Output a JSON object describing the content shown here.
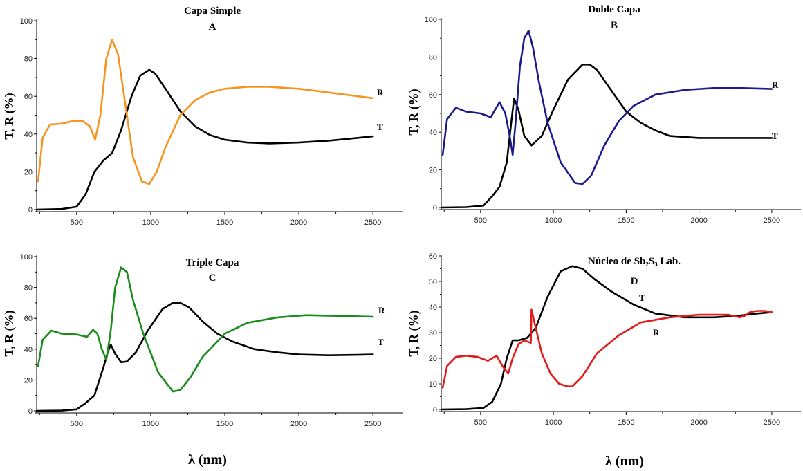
{
  "x_axis_label": "λ (nm)",
  "chart_data": [
    {
      "type": "line",
      "title": "Capa Simple",
      "subtitle": "A",
      "ylabel": "T, R (%)",
      "xlim": [
        230,
        2700
      ],
      "ylim": [
        0,
        100
      ],
      "xticks": [
        500,
        1000,
        1500,
        2000,
        2500
      ],
      "yticks": [
        0,
        20,
        40,
        60,
        80,
        100
      ],
      "series": [
        {
          "name": "T",
          "color": "#000000",
          "x": [
            230,
            400,
            500,
            560,
            620,
            680,
            740,
            800,
            870,
            930,
            990,
            1030,
            1100,
            1200,
            1300,
            1400,
            1500,
            1650,
            1800,
            2000,
            2200,
            2400,
            2500
          ],
          "y": [
            0,
            0.3,
            1.5,
            8,
            20,
            26,
            30,
            42,
            60,
            71,
            74,
            72,
            64,
            52,
            44,
            39.5,
            37,
            35.5,
            35,
            35.5,
            36.5,
            38,
            38.8
          ]
        },
        {
          "name": "R",
          "color": "#f7941d",
          "x": [
            240,
            270,
            320,
            400,
            480,
            540,
            590,
            625,
            660,
            700,
            740,
            780,
            830,
            880,
            940,
            990,
            1040,
            1100,
            1200,
            1300,
            1400,
            1500,
            1650,
            1800,
            2000,
            2200,
            2400,
            2500
          ],
          "y": [
            15,
            38,
            45,
            45.5,
            47,
            47,
            44,
            37,
            50,
            80,
            90,
            82,
            55,
            28,
            15,
            13.5,
            20,
            33,
            50,
            58,
            62,
            64,
            65,
            65,
            64,
            62,
            60,
            59
          ]
        }
      ],
      "annotations": [
        {
          "text": "R"
        },
        {
          "text": "T"
        }
      ]
    },
    {
      "type": "line",
      "title": "Doble Capa",
      "subtitle": "B",
      "ylabel": "T, R (%)",
      "xlim": [
        230,
        2700
      ],
      "ylim": [
        0,
        100
      ],
      "xticks": [
        500,
        1000,
        1500,
        2000,
        2500
      ],
      "yticks": [
        0,
        20,
        40,
        60,
        80,
        100
      ],
      "series": [
        {
          "name": "T",
          "color": "#000000",
          "x": [
            230,
            400,
            520,
            580,
            630,
            680,
            710,
            730,
            760,
            800,
            850,
            920,
            1000,
            1100,
            1200,
            1250,
            1300,
            1400,
            1500,
            1600,
            1700,
            1800,
            2000,
            2200,
            2400,
            2500
          ],
          "y": [
            0,
            0.2,
            1,
            6,
            11,
            24,
            45,
            58,
            52,
            38,
            33,
            38,
            52,
            68,
            76,
            76,
            73,
            62,
            51,
            45,
            41,
            38,
            37,
            37,
            37,
            37
          ]
        },
        {
          "name": "R",
          "color": "#1a1a8c",
          "x": [
            240,
            270,
            330,
            400,
            500,
            570,
            630,
            670,
            700,
            720,
            740,
            770,
            800,
            830,
            860,
            900,
            960,
            1050,
            1150,
            1200,
            1260,
            1350,
            1450,
            1550,
            1700,
            1900,
            2100,
            2300,
            2500
          ],
          "y": [
            28,
            47,
            53,
            51,
            50,
            48,
            56,
            50,
            38,
            28,
            45,
            75,
            90,
            94,
            85,
            67,
            45,
            24,
            13,
            12.5,
            17,
            33,
            46,
            54,
            60,
            62.5,
            63.5,
            63.5,
            63
          ]
        }
      ],
      "annotations": [
        {
          "text": "R"
        },
        {
          "text": "T"
        }
      ]
    },
    {
      "type": "line",
      "title": "Triple Capa",
      "subtitle": "C",
      "ylabel": "T, R (%)",
      "xlim": [
        230,
        2700
      ],
      "ylim": [
        0,
        100
      ],
      "xticks": [
        500,
        1000,
        1500,
        2000,
        2500
      ],
      "yticks": [
        0,
        20,
        40,
        60,
        80,
        100
      ],
      "series": [
        {
          "name": "T",
          "color": "#000000",
          "x": [
            230,
            400,
            500,
            560,
            620,
            680,
            710,
            730,
            760,
            800,
            840,
            900,
            980,
            1080,
            1150,
            1200,
            1260,
            1350,
            1450,
            1550,
            1700,
            1850,
            2000,
            2200,
            2400,
            2500
          ],
          "y": [
            0,
            0.2,
            1,
            5,
            10,
            28,
            38,
            43,
            37,
            31.5,
            32,
            38,
            52,
            66,
            70,
            70,
            67,
            58,
            50,
            45,
            40,
            38,
            36.5,
            36,
            36.3,
            36.5
          ]
        },
        {
          "name": "R",
          "color": "#1a8c1a",
          "x": [
            240,
            270,
            330,
            400,
            500,
            570,
            610,
            640,
            670,
            700,
            730,
            760,
            800,
            840,
            880,
            950,
            1050,
            1150,
            1200,
            1270,
            1350,
            1500,
            1650,
            1850,
            2050,
            2300,
            2500
          ],
          "y": [
            29,
            46,
            52,
            50,
            49.5,
            48,
            52.5,
            50,
            40,
            33,
            52,
            80,
            93,
            90,
            72,
            50,
            25,
            12.5,
            13.5,
            22,
            35,
            50,
            57,
            60.5,
            62,
            61.5,
            61
          ]
        }
      ],
      "annotations": [
        {
          "text": "R"
        },
        {
          "text": "T"
        }
      ]
    },
    {
      "type": "line",
      "title": "Núcleo de Sb₂S₃ Lab.",
      "subtitle": "D",
      "ylabel": "T, R (%)",
      "xlim": [
        230,
        2700
      ],
      "ylim": [
        0,
        60
      ],
      "xticks": [
        500,
        1000,
        1500,
        2000,
        2500
      ],
      "yticks": [
        0,
        10,
        20,
        30,
        40,
        50,
        60
      ],
      "series": [
        {
          "name": "T",
          "color": "#000000",
          "x": [
            230,
            400,
            520,
            580,
            640,
            680,
            720,
            760,
            820,
            880,
            960,
            1050,
            1130,
            1200,
            1280,
            1400,
            1550,
            1700,
            1900,
            2100,
            2250,
            2400,
            2500
          ],
          "y": [
            0,
            0.1,
            0.6,
            3,
            10,
            20,
            27,
            27,
            28,
            32,
            44,
            54,
            56,
            55,
            51,
            46,
            41,
            37.5,
            36,
            36,
            36.5,
            37.5,
            38
          ]
        },
        {
          "name": "R",
          "color": "#e31a1a",
          "x": [
            240,
            270,
            330,
            400,
            480,
            550,
            610,
            650,
            690,
            720,
            760,
            800,
            845,
            850,
            870,
            920,
            980,
            1040,
            1100,
            1130,
            1200,
            1300,
            1450,
            1600,
            1800,
            2000,
            2200,
            2280,
            2310,
            2350,
            2400,
            2450,
            2500
          ],
          "y": [
            8.5,
            17,
            20.5,
            21,
            20.5,
            19,
            21,
            17,
            14,
            20,
            25.5,
            27,
            26,
            39,
            34,
            22,
            14,
            10,
            9,
            9,
            13,
            22,
            29,
            34,
            36,
            37,
            37,
            36,
            36.5,
            38,
            38.5,
            38.5,
            38
          ]
        }
      ],
      "annotations": [
        {
          "text": "T"
        },
        {
          "text": "R"
        }
      ]
    }
  ]
}
